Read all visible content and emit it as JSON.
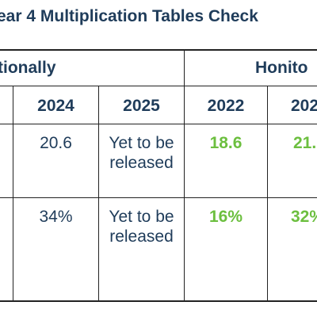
{
  "title": "ear 4 Multiplication Tables Check",
  "groups": {
    "nationally": "tionally",
    "honiton": "Honito"
  },
  "years": {
    "y2024": "2024",
    "y2025": "2025",
    "y2022": "2022",
    "y2023_partial": "202"
  },
  "rows": [
    {
      "national_2024": "20.6",
      "national_2025_line1": "Yet to be",
      "national_2025_line2": "released",
      "honiton_2022": "18.6",
      "honiton_2023_partial": "21."
    },
    {
      "national_2024": "34%",
      "national_2025_line1": "Yet to be",
      "national_2025_line2": "released",
      "honiton_2022": "16%",
      "honiton_2023_partial": "32%"
    }
  ],
  "colors": {
    "text": "#1f3c5a",
    "highlight": "#6cbf3f",
    "border": "#222222"
  }
}
